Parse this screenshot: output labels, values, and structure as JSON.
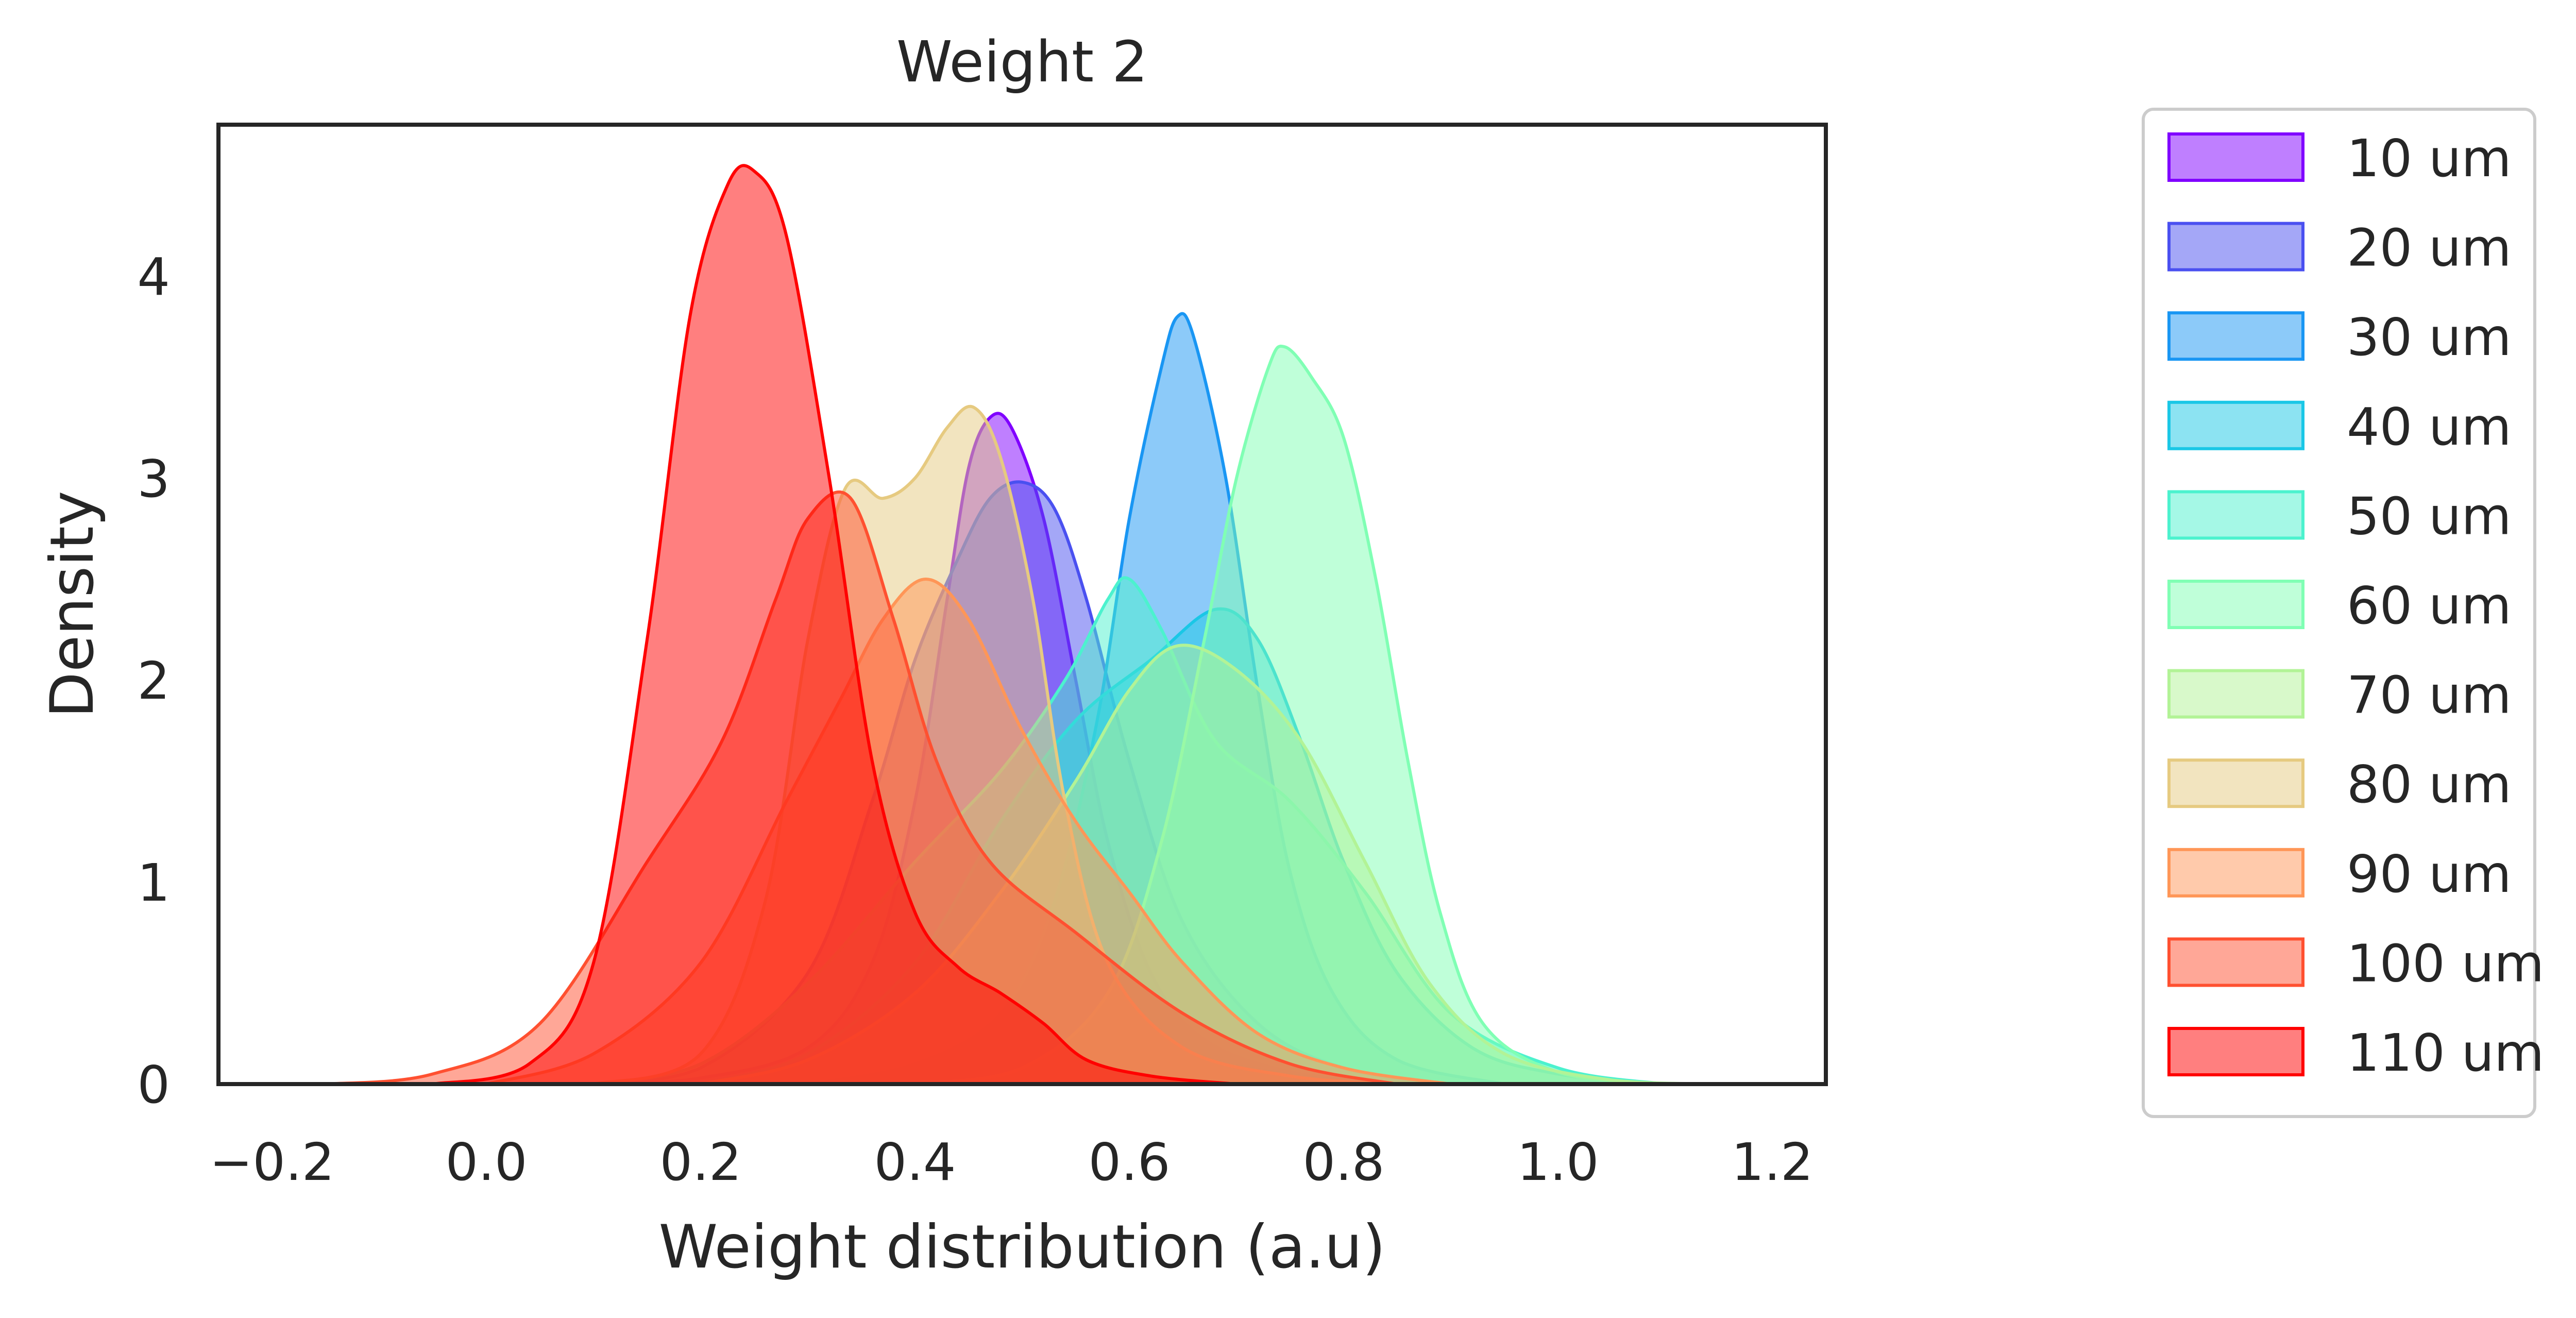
{
  "chart_data": {
    "type": "area",
    "title": "Weight 2",
    "xlabel": "Weight distribution (a.u)",
    "ylabel": "Density",
    "xlim": [
      -0.25,
      1.25
    ],
    "ylim": [
      0,
      4.75
    ],
    "x_ticks": [
      -0.2,
      0.0,
      0.2,
      0.4,
      0.6,
      0.8,
      1.0,
      1.2
    ],
    "x_tick_labels": [
      "−0.2",
      "0.0",
      "0.2",
      "0.4",
      "0.6",
      "0.8",
      "1.0",
      "1.2"
    ],
    "y_ticks": [
      0,
      1,
      2,
      3,
      4
    ],
    "y_tick_labels": [
      "0",
      "1",
      "2",
      "3",
      "4"
    ],
    "grid": false,
    "legend_position": "outside-right",
    "series": [
      {
        "name": "10 um",
        "color": "#8000ff",
        "points": [
          [
            0.1,
            0
          ],
          [
            0.2,
            0.03
          ],
          [
            0.3,
            0.18
          ],
          [
            0.36,
            0.6
          ],
          [
            0.4,
            1.4
          ],
          [
            0.43,
            2.4
          ],
          [
            0.45,
            3.05
          ],
          [
            0.47,
            3.3
          ],
          [
            0.49,
            3.25
          ],
          [
            0.52,
            2.8
          ],
          [
            0.55,
            2.0
          ],
          [
            0.58,
            1.2
          ],
          [
            0.62,
            0.55
          ],
          [
            0.67,
            0.22
          ],
          [
            0.75,
            0.06
          ],
          [
            0.85,
            0
          ]
        ]
      },
      {
        "name": "20 um",
        "color": "#4a50f0",
        "points": [
          [
            0.1,
            0
          ],
          [
            0.2,
            0.08
          ],
          [
            0.3,
            0.55
          ],
          [
            0.36,
            1.4
          ],
          [
            0.4,
            2.1
          ],
          [
            0.44,
            2.6
          ],
          [
            0.47,
            2.9
          ],
          [
            0.5,
            2.98
          ],
          [
            0.53,
            2.85
          ],
          [
            0.56,
            2.4
          ],
          [
            0.6,
            1.6
          ],
          [
            0.65,
            0.8
          ],
          [
            0.72,
            0.3
          ],
          [
            0.8,
            0.08
          ],
          [
            0.9,
            0
          ]
        ]
      },
      {
        "name": "30 um",
        "color": "#1996f3",
        "points": [
          [
            0.3,
            0
          ],
          [
            0.4,
            0.1
          ],
          [
            0.48,
            0.35
          ],
          [
            0.53,
            0.9
          ],
          [
            0.57,
            1.8
          ],
          [
            0.6,
            2.8
          ],
          [
            0.63,
            3.55
          ],
          [
            0.645,
            3.8
          ],
          [
            0.66,
            3.7
          ],
          [
            0.69,
            3.0
          ],
          [
            0.72,
            1.95
          ],
          [
            0.75,
            1.05
          ],
          [
            0.79,
            0.45
          ],
          [
            0.85,
            0.12
          ],
          [
            0.95,
            0
          ]
        ]
      },
      {
        "name": "40 um",
        "color": "#1ac7e6",
        "points": [
          [
            0.2,
            0
          ],
          [
            0.3,
            0.15
          ],
          [
            0.4,
            0.6
          ],
          [
            0.48,
            1.3
          ],
          [
            0.55,
            1.8
          ],
          [
            0.62,
            2.1
          ],
          [
            0.68,
            2.35
          ],
          [
            0.72,
            2.2
          ],
          [
            0.76,
            1.7
          ],
          [
            0.8,
            1.1
          ],
          [
            0.85,
            0.55
          ],
          [
            0.92,
            0.18
          ],
          [
            1.0,
            0.05
          ],
          [
            1.1,
            0
          ]
        ]
      },
      {
        "name": "50 um",
        "color": "#4cf2ce",
        "points": [
          [
            0.1,
            0
          ],
          [
            0.2,
            0.1
          ],
          [
            0.3,
            0.5
          ],
          [
            0.4,
            1.1
          ],
          [
            0.48,
            1.55
          ],
          [
            0.54,
            2.0
          ],
          [
            0.58,
            2.4
          ],
          [
            0.6,
            2.5
          ],
          [
            0.63,
            2.25
          ],
          [
            0.68,
            1.7
          ],
          [
            0.75,
            1.4
          ],
          [
            0.82,
            0.95
          ],
          [
            0.9,
            0.35
          ],
          [
            1.0,
            0.08
          ],
          [
            1.1,
            0
          ]
        ]
      },
      {
        "name": "60 um",
        "color": "#80ffb4",
        "points": [
          [
            0.4,
            0
          ],
          [
            0.5,
            0.08
          ],
          [
            0.58,
            0.45
          ],
          [
            0.63,
            1.2
          ],
          [
            0.67,
            2.2
          ],
          [
            0.7,
            3.0
          ],
          [
            0.73,
            3.55
          ],
          [
            0.745,
            3.65
          ],
          [
            0.77,
            3.5
          ],
          [
            0.8,
            3.2
          ],
          [
            0.83,
            2.5
          ],
          [
            0.86,
            1.6
          ],
          [
            0.89,
            0.85
          ],
          [
            0.93,
            0.3
          ],
          [
            1.0,
            0.06
          ],
          [
            1.1,
            0
          ]
        ]
      },
      {
        "name": "70 um",
        "color": "#b2f396",
        "points": [
          [
            0.2,
            0
          ],
          [
            0.3,
            0.12
          ],
          [
            0.4,
            0.45
          ],
          [
            0.48,
            0.95
          ],
          [
            0.55,
            1.5
          ],
          [
            0.6,
            1.95
          ],
          [
            0.645,
            2.17
          ],
          [
            0.7,
            2.05
          ],
          [
            0.76,
            1.7
          ],
          [
            0.82,
            1.1
          ],
          [
            0.88,
            0.5
          ],
          [
            0.95,
            0.15
          ],
          [
            1.05,
            0.02
          ],
          [
            1.15,
            0
          ]
        ]
      },
      {
        "name": "80 um",
        "color": "#e6ca80",
        "points": [
          [
            0.1,
            0
          ],
          [
            0.2,
            0.15
          ],
          [
            0.26,
            0.9
          ],
          [
            0.3,
            2.2
          ],
          [
            0.335,
            2.95
          ],
          [
            0.37,
            2.9
          ],
          [
            0.4,
            3.0
          ],
          [
            0.43,
            3.25
          ],
          [
            0.455,
            3.35
          ],
          [
            0.48,
            3.1
          ],
          [
            0.51,
            2.4
          ],
          [
            0.54,
            1.4
          ],
          [
            0.58,
            0.6
          ],
          [
            0.65,
            0.18
          ],
          [
            0.75,
            0.04
          ],
          [
            0.85,
            0
          ]
        ]
      },
      {
        "name": "90 um",
        "color": "#ff9657",
        "points": [
          [
            0.0,
            0
          ],
          [
            0.1,
            0.15
          ],
          [
            0.2,
            0.6
          ],
          [
            0.28,
            1.4
          ],
          [
            0.33,
            1.9
          ],
          [
            0.37,
            2.3
          ],
          [
            0.41,
            2.5
          ],
          [
            0.45,
            2.3
          ],
          [
            0.5,
            1.75
          ],
          [
            0.55,
            1.3
          ],
          [
            0.6,
            0.95
          ],
          [
            0.65,
            0.6
          ],
          [
            0.72,
            0.25
          ],
          [
            0.8,
            0.08
          ],
          [
            0.9,
            0
          ]
        ]
      },
      {
        "name": "100 um",
        "color": "#ff5030",
        "points": [
          [
            -0.15,
            0
          ],
          [
            -0.05,
            0.05
          ],
          [
            0.05,
            0.3
          ],
          [
            0.15,
            1.1
          ],
          [
            0.22,
            1.7
          ],
          [
            0.27,
            2.4
          ],
          [
            0.3,
            2.8
          ],
          [
            0.34,
            2.9
          ],
          [
            0.38,
            2.3
          ],
          [
            0.42,
            1.6
          ],
          [
            0.47,
            1.1
          ],
          [
            0.55,
            0.75
          ],
          [
            0.65,
            0.35
          ],
          [
            0.75,
            0.1
          ],
          [
            0.85,
            0
          ]
        ]
      },
      {
        "name": "110 um",
        "color": "#ff0000",
        "points": [
          [
            -0.05,
            0
          ],
          [
            0.04,
            0.1
          ],
          [
            0.1,
            0.6
          ],
          [
            0.15,
            2.2
          ],
          [
            0.19,
            3.8
          ],
          [
            0.225,
            4.45
          ],
          [
            0.25,
            4.52
          ],
          [
            0.28,
            4.2
          ],
          [
            0.32,
            3.0
          ],
          [
            0.36,
            1.6
          ],
          [
            0.4,
            0.85
          ],
          [
            0.44,
            0.58
          ],
          [
            0.48,
            0.45
          ],
          [
            0.52,
            0.3
          ],
          [
            0.56,
            0.12
          ],
          [
            0.62,
            0.04
          ],
          [
            0.7,
            0
          ]
        ]
      }
    ]
  }
}
